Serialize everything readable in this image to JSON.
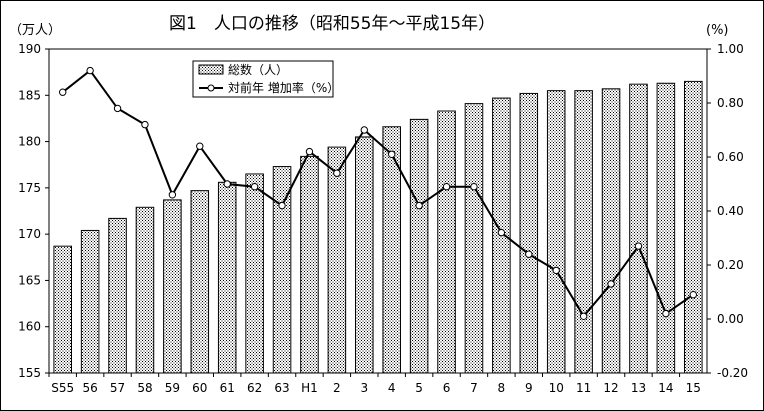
{
  "chart_data": {
    "type": "bar",
    "title": "図1　人口の推移（昭和55年～平成15年）",
    "y_left_unit": "（万人）",
    "y_right_unit": "(%)",
    "categories": [
      "S55",
      "56",
      "57",
      "58",
      "59",
      "60",
      "61",
      "62",
      "63",
      "H1",
      "2",
      "3",
      "4",
      "5",
      "6",
      "7",
      "8",
      "9",
      "10",
      "11",
      "12",
      "13",
      "14",
      "15"
    ],
    "ylim_left": [
      155,
      190
    ],
    "yticks_left": [
      "155",
      "160",
      "165",
      "170",
      "175",
      "180",
      "185",
      "190"
    ],
    "ylim_right": [
      -0.2,
      1.0
    ],
    "yticks_right": [
      "-0.20",
      "0.00",
      "0.20",
      "0.40",
      "0.60",
      "0.80",
      "1.00"
    ],
    "series": [
      {
        "name": "総数（人）",
        "type": "bar",
        "axis": "left",
        "values": [
          168.7,
          170.4,
          171.7,
          172.9,
          173.7,
          174.7,
          175.6,
          176.5,
          177.3,
          178.4,
          179.4,
          180.5,
          181.6,
          182.4,
          183.3,
          184.1,
          184.7,
          185.2,
          185.5,
          185.5,
          185.7,
          186.2,
          186.3,
          186.5
        ]
      },
      {
        "name": "対前年 増加率（%）",
        "type": "line",
        "axis": "right",
        "values": [
          0.84,
          0.92,
          0.78,
          0.72,
          0.46,
          0.64,
          0.5,
          0.49,
          0.42,
          0.62,
          0.54,
          0.7,
          0.61,
          0.42,
          0.49,
          0.49,
          0.32,
          0.24,
          0.18,
          0.01,
          0.13,
          0.27,
          0.02,
          0.09
        ]
      }
    ]
  }
}
